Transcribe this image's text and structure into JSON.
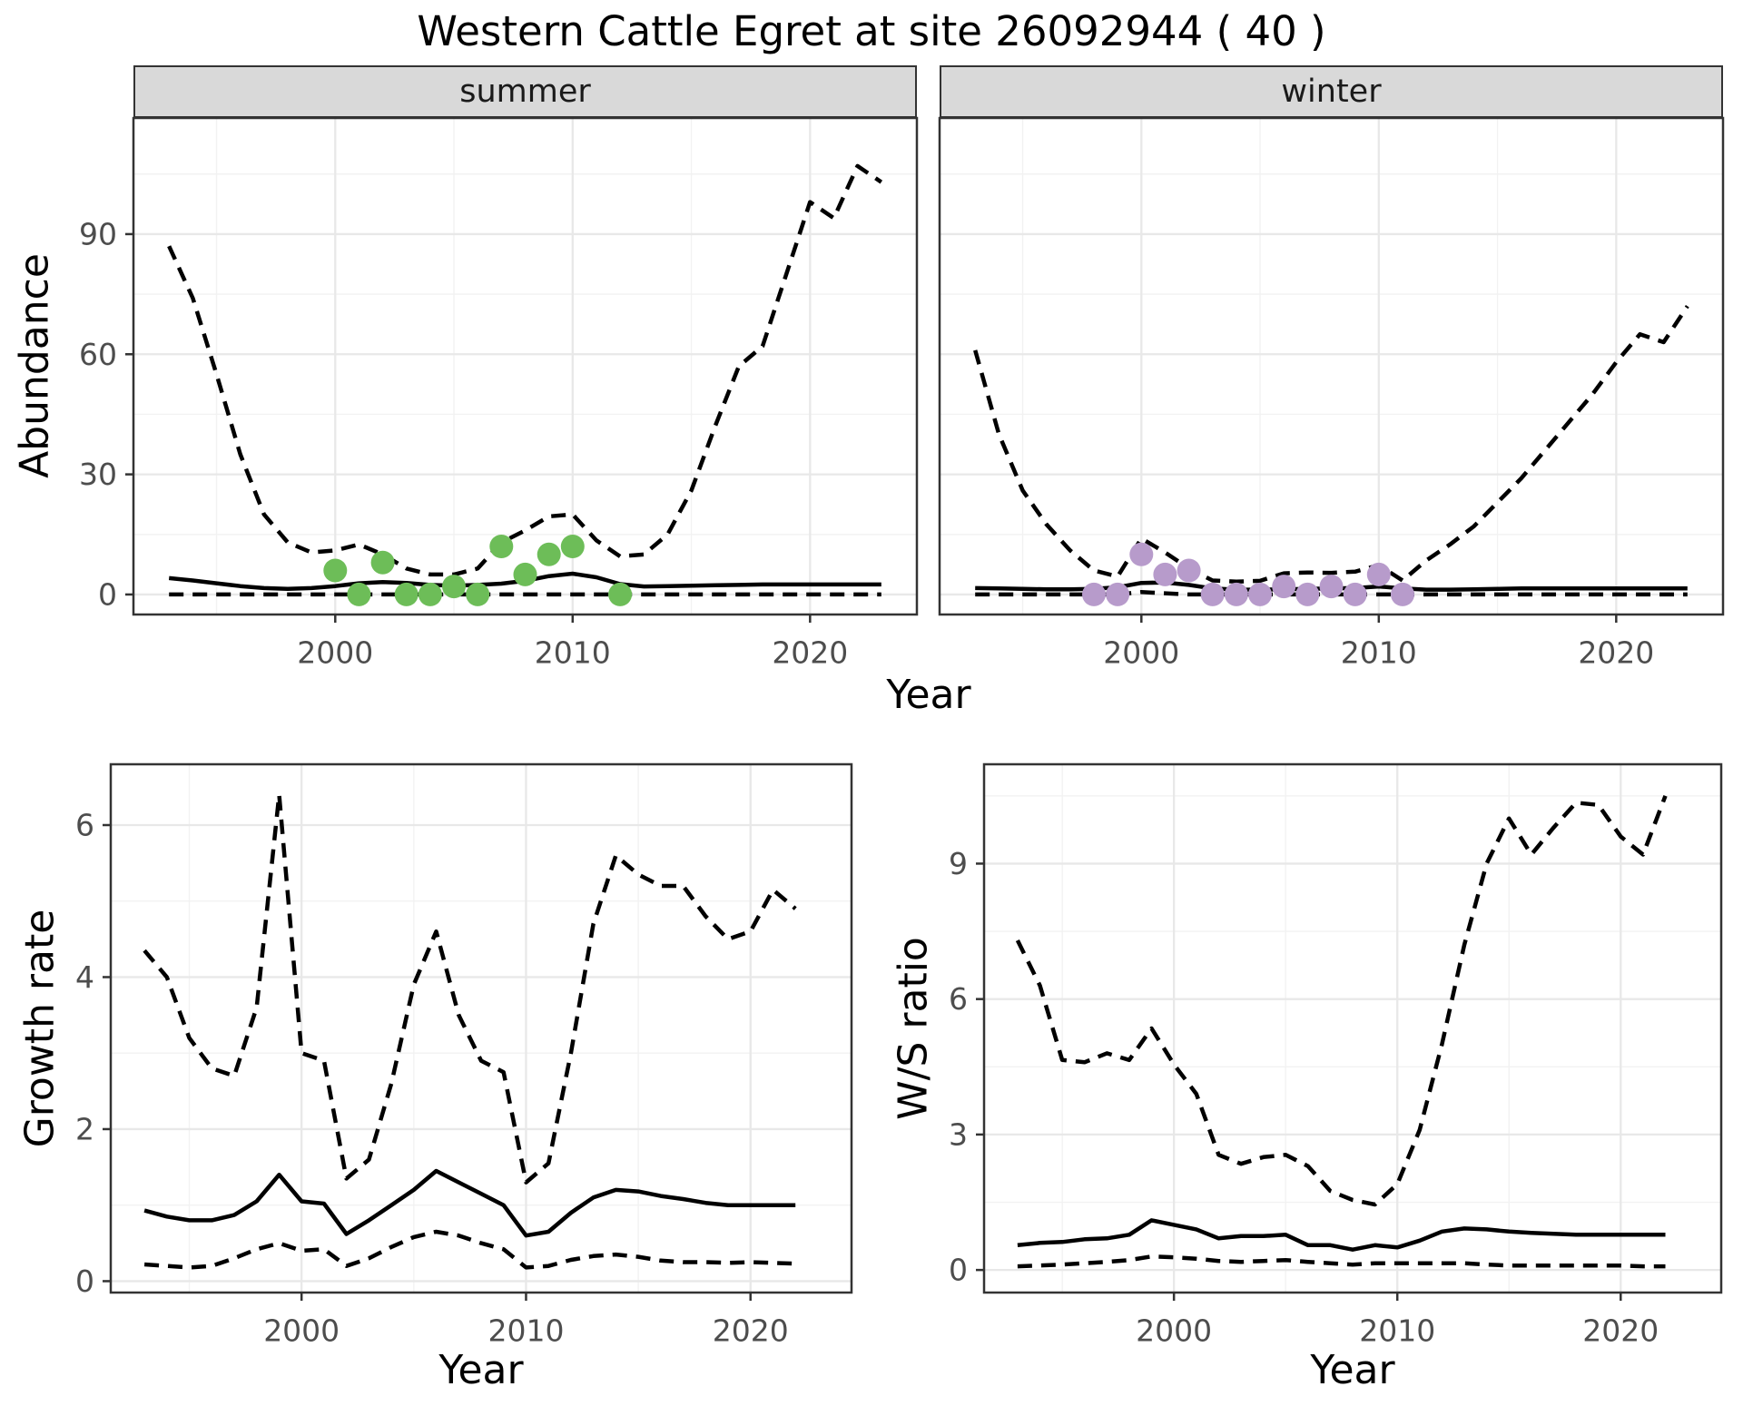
{
  "title": "Western Cattle Egret at site 26092944 ( 40 )",
  "colors": {
    "summer_points": "#6dbd58",
    "winter_points": "#b79bcb",
    "line": "#000000",
    "tick_label": "#4d4d4d",
    "axis_tick": "#333333",
    "panel_border": "#333333",
    "strip_bg": "#d9d9d9",
    "grid_major": "#e8e8e8",
    "grid_minor": "#f2f2f2"
  },
  "chart_data": [
    {
      "id": "abundance_summer",
      "type": "line+scatter",
      "facet_label": "summer",
      "ylabel": "Abundance",
      "xlabel": "Year",
      "legend_position": "none",
      "grid": true,
      "xlim": [
        1991.5,
        2024.5
      ],
      "ylim": [
        -5,
        119
      ],
      "x_ticks": [
        2000,
        2010,
        2020
      ],
      "y_ticks": [
        0,
        30,
        60,
        90
      ],
      "x_minor": [
        1995,
        2005,
        2015
      ],
      "y_minor": [
        15,
        45,
        75,
        105
      ],
      "series": [
        {
          "name": "upper_95ci",
          "style": "dashed",
          "x": [
            1993,
            1994,
            1995,
            1996,
            1997,
            1998,
            1999,
            2000,
            2001,
            2002,
            2003,
            2004,
            2005,
            2006,
            2007,
            2008,
            2009,
            2010,
            2011,
            2012,
            2013,
            2014,
            2015,
            2016,
            2017,
            2018,
            2019,
            2020,
            2021,
            2022,
            2023
          ],
          "y": [
            87,
            74,
            55,
            35,
            20,
            13,
            10.5,
            11,
            12.5,
            10,
            6.5,
            5,
            5,
            6.5,
            13,
            16,
            19.5,
            20,
            13.5,
            9.5,
            10,
            15,
            26,
            42,
            57,
            62,
            80,
            98,
            94,
            107,
            103
          ]
        },
        {
          "name": "lower_95ci",
          "style": "dashed",
          "x": [
            1993,
            1994,
            1995,
            1996,
            1997,
            1998,
            1999,
            2000,
            2001,
            2002,
            2003,
            2004,
            2005,
            2006,
            2007,
            2008,
            2009,
            2010,
            2011,
            2012,
            2013,
            2014,
            2015,
            2016,
            2017,
            2018,
            2019,
            2020,
            2021,
            2022,
            2023
          ],
          "y": [
            0,
            0,
            0,
            0,
            0,
            0,
            0,
            0,
            0,
            0,
            0,
            0,
            0,
            0,
            0,
            0,
            0,
            0,
            0,
            0,
            0,
            0,
            0,
            0,
            0,
            0,
            0,
            0,
            0,
            0,
            0
          ]
        },
        {
          "name": "model_fit",
          "style": "solid",
          "x": [
            1993,
            1994,
            1995,
            1996,
            1997,
            1998,
            1999,
            2000,
            2001,
            2002,
            2003,
            2004,
            2005,
            2006,
            2007,
            2008,
            2009,
            2010,
            2011,
            2012,
            2013,
            2014,
            2015,
            2016,
            2017,
            2018,
            2019,
            2020,
            2021,
            2022,
            2023
          ],
          "y": [
            4.1,
            3.5,
            2.8,
            2.1,
            1.6,
            1.4,
            1.6,
            2.1,
            2.8,
            3.1,
            2.9,
            2.4,
            2.2,
            2.4,
            2.7,
            3.4,
            4.6,
            5.2,
            4.3,
            2.6,
            2.0,
            2.1,
            2.2,
            2.3,
            2.4,
            2.5,
            2.5,
            2.5,
            2.5,
            2.5,
            2.5
          ]
        },
        {
          "name": "observed_counts",
          "style": "points",
          "color_key": "summer_points",
          "x": [
            2000,
            2001,
            2002,
            2003,
            2004,
            2005,
            2006,
            2007,
            2008,
            2009,
            2010,
            2012
          ],
          "y": [
            6,
            0,
            8,
            0,
            0,
            2,
            0,
            12,
            5,
            10,
            12,
            0
          ]
        }
      ]
    },
    {
      "id": "abundance_winter",
      "type": "line+scatter",
      "facet_label": "winter",
      "ylabel": "Abundance",
      "xlabel": "Year",
      "legend_position": "none",
      "grid": true,
      "xlim": [
        1991.5,
        2024.5
      ],
      "ylim": [
        -5,
        119
      ],
      "x_ticks": [
        2000,
        2010,
        2020
      ],
      "y_ticks": [
        0,
        30,
        60,
        90
      ],
      "x_minor": [
        1995,
        2005,
        2015
      ],
      "y_minor": [
        15,
        45,
        75,
        105
      ],
      "series": [
        {
          "name": "upper_95ci",
          "style": "dashed",
          "x": [
            1993,
            1994,
            1995,
            1996,
            1997,
            1998,
            1999,
            2000,
            2001,
            2002,
            2003,
            2004,
            2005,
            2006,
            2007,
            2008,
            2009,
            2010,
            2011,
            2012,
            2013,
            2014,
            2015,
            2016,
            2017,
            2018,
            2019,
            2020,
            2021,
            2022,
            2023
          ],
          "y": [
            61,
            40,
            26,
            17.5,
            11,
            6,
            4.5,
            14,
            10.5,
            6.5,
            3.5,
            3.2,
            3.4,
            5.3,
            5.5,
            5.4,
            5.7,
            7.3,
            3.5,
            8.5,
            12.5,
            17,
            23,
            29,
            36,
            43,
            50,
            58,
            65,
            63,
            72
          ]
        },
        {
          "name": "lower_95ci",
          "style": "dashed",
          "x": [
            1993,
            1994,
            1995,
            1996,
            1997,
            1998,
            1999,
            2000,
            2001,
            2002,
            2003,
            2004,
            2005,
            2006,
            2007,
            2008,
            2009,
            2010,
            2011,
            2012,
            2013,
            2014,
            2015,
            2016,
            2017,
            2018,
            2019,
            2020,
            2021,
            2022,
            2023
          ],
          "y": [
            0,
            0,
            0,
            0,
            0,
            0,
            0,
            0.6,
            0.3,
            0,
            0,
            0,
            0,
            0,
            0,
            0,
            0,
            0,
            0,
            0,
            0,
            0,
            0,
            0,
            0,
            0,
            0,
            0,
            0,
            0,
            0
          ]
        },
        {
          "name": "model_fit",
          "style": "solid",
          "x": [
            1993,
            1994,
            1995,
            1996,
            1997,
            1998,
            1999,
            2000,
            2001,
            2002,
            2003,
            2004,
            2005,
            2006,
            2007,
            2008,
            2009,
            2010,
            2011,
            2012,
            2013,
            2014,
            2015,
            2016,
            2017,
            2018,
            2019,
            2020,
            2021,
            2022,
            2023
          ],
          "y": [
            1.6,
            1.5,
            1.4,
            1.3,
            1.3,
            1.4,
            1.8,
            2.9,
            3.0,
            2.4,
            1.5,
            1.2,
            1.2,
            1.3,
            1.4,
            1.5,
            1.6,
            2.0,
            1.5,
            1.2,
            1.2,
            1.3,
            1.4,
            1.5,
            1.5,
            1.5,
            1.5,
            1.5,
            1.5,
            1.5,
            1.5
          ]
        },
        {
          "name": "observed_counts",
          "style": "points",
          "color_key": "winter_points",
          "x": [
            1998,
            1999,
            2000,
            2001,
            2002,
            2003,
            2004,
            2005,
            2006,
            2007,
            2008,
            2009,
            2010,
            2011
          ],
          "y": [
            0,
            0,
            10,
            5,
            6,
            0,
            0,
            0,
            2,
            0,
            2,
            0,
            5,
            0
          ]
        }
      ]
    },
    {
      "id": "growth_rate",
      "type": "line",
      "facet_label": "",
      "ylabel": "Growth rate",
      "xlabel": "Year",
      "legend_position": "none",
      "grid": true,
      "xlim": [
        1991.5,
        2024.5
      ],
      "ylim": [
        -0.15,
        6.8
      ],
      "x_ticks": [
        2000,
        2010,
        2020
      ],
      "y_ticks": [
        0,
        2,
        4,
        6
      ],
      "x_minor": [
        1995,
        2005,
        2015
      ],
      "y_minor": [
        1,
        3,
        5
      ],
      "series": [
        {
          "name": "upper_95ci",
          "style": "dashed",
          "x": [
            1993,
            1994,
            1995,
            1996,
            1997,
            1998,
            1999,
            2000,
            2001,
            2002,
            2003,
            2004,
            2005,
            2006,
            2007,
            2008,
            2009,
            2010,
            2011,
            2012,
            2013,
            2014,
            2015,
            2016,
            2017,
            2018,
            2019,
            2020,
            2021,
            2022
          ],
          "y": [
            4.35,
            4.0,
            3.2,
            2.8,
            2.7,
            3.6,
            6.4,
            3.0,
            2.9,
            1.35,
            1.6,
            2.6,
            3.9,
            4.6,
            3.5,
            2.9,
            2.75,
            1.3,
            1.55,
            3.0,
            4.7,
            5.6,
            5.35,
            5.2,
            5.2,
            4.8,
            4.5,
            4.6,
            5.15,
            4.9
          ]
        },
        {
          "name": "lower_95ci",
          "style": "dashed",
          "x": [
            1993,
            1994,
            1995,
            1996,
            1997,
            1998,
            1999,
            2000,
            2001,
            2002,
            2003,
            2004,
            2005,
            2006,
            2007,
            2008,
            2009,
            2010,
            2011,
            2012,
            2013,
            2014,
            2015,
            2016,
            2017,
            2018,
            2019,
            2020,
            2021,
            2022
          ],
          "y": [
            0.22,
            0.2,
            0.18,
            0.2,
            0.3,
            0.42,
            0.5,
            0.4,
            0.42,
            0.2,
            0.3,
            0.45,
            0.58,
            0.65,
            0.6,
            0.5,
            0.42,
            0.18,
            0.2,
            0.28,
            0.33,
            0.35,
            0.32,
            0.27,
            0.25,
            0.25,
            0.24,
            0.25,
            0.24,
            0.23
          ]
        },
        {
          "name": "model_fit",
          "style": "solid",
          "x": [
            1993,
            1994,
            1995,
            1996,
            1997,
            1998,
            1999,
            2000,
            2001,
            2002,
            2003,
            2004,
            2005,
            2006,
            2007,
            2008,
            2009,
            2010,
            2011,
            2012,
            2013,
            2014,
            2015,
            2016,
            2017,
            2018,
            2019,
            2020,
            2021,
            2022
          ],
          "y": [
            0.93,
            0.85,
            0.8,
            0.8,
            0.87,
            1.05,
            1.4,
            1.05,
            1.02,
            0.62,
            0.8,
            1.0,
            1.2,
            1.45,
            1.3,
            1.15,
            1.0,
            0.6,
            0.65,
            0.9,
            1.1,
            1.2,
            1.18,
            1.12,
            1.08,
            1.03,
            1.0,
            1.0,
            1.0,
            1.0
          ]
        }
      ]
    },
    {
      "id": "ws_ratio",
      "type": "line",
      "facet_label": "",
      "ylabel": "W/S ratio",
      "xlabel": "Year",
      "legend_position": "none",
      "grid": true,
      "xlim": [
        1991.5,
        2024.5
      ],
      "ylim": [
        -0.5,
        11.2
      ],
      "x_ticks": [
        2000,
        2010,
        2020
      ],
      "y_ticks": [
        0,
        3,
        6,
        9
      ],
      "x_minor": [
        1995,
        2005,
        2015
      ],
      "y_minor": [
        1.5,
        4.5,
        7.5,
        10.5
      ],
      "series": [
        {
          "name": "upper_95ci",
          "style": "dashed",
          "x": [
            1993,
            1994,
            1995,
            1996,
            1997,
            1998,
            1999,
            2000,
            2001,
            2002,
            2003,
            2004,
            2005,
            2006,
            2007,
            2008,
            2009,
            2010,
            2011,
            2012,
            2013,
            2014,
            2015,
            2016,
            2017,
            2018,
            2019,
            2020,
            2021,
            2022
          ],
          "y": [
            7.3,
            6.3,
            4.65,
            4.6,
            4.8,
            4.65,
            5.35,
            4.55,
            3.9,
            2.55,
            2.35,
            2.5,
            2.55,
            2.3,
            1.75,
            1.55,
            1.45,
            1.9,
            3.1,
            5.0,
            7.2,
            9.0,
            10.0,
            9.2,
            9.8,
            10.35,
            10.3,
            9.6,
            9.2,
            10.5
          ]
        },
        {
          "name": "lower_95ci",
          "style": "dashed",
          "x": [
            1993,
            1994,
            1995,
            1996,
            1997,
            1998,
            1999,
            2000,
            2001,
            2002,
            2003,
            2004,
            2005,
            2006,
            2007,
            2008,
            2009,
            2010,
            2011,
            2012,
            2013,
            2014,
            2015,
            2016,
            2017,
            2018,
            2019,
            2020,
            2021,
            2022
          ],
          "y": [
            0.08,
            0.1,
            0.12,
            0.15,
            0.18,
            0.22,
            0.3,
            0.28,
            0.25,
            0.2,
            0.18,
            0.2,
            0.22,
            0.18,
            0.15,
            0.12,
            0.15,
            0.15,
            0.15,
            0.15,
            0.15,
            0.12,
            0.1,
            0.1,
            0.1,
            0.1,
            0.1,
            0.1,
            0.08,
            0.08
          ]
        },
        {
          "name": "model_fit",
          "style": "solid",
          "x": [
            1993,
            1994,
            1995,
            1996,
            1997,
            1998,
            1999,
            2000,
            2001,
            2002,
            2003,
            2004,
            2005,
            2006,
            2007,
            2008,
            2009,
            2010,
            2011,
            2012,
            2013,
            2014,
            2015,
            2016,
            2017,
            2018,
            2019,
            2020,
            2021,
            2022
          ],
          "y": [
            0.55,
            0.6,
            0.62,
            0.68,
            0.7,
            0.78,
            1.1,
            1.0,
            0.9,
            0.7,
            0.75,
            0.75,
            0.78,
            0.55,
            0.55,
            0.45,
            0.55,
            0.5,
            0.65,
            0.85,
            0.92,
            0.9,
            0.85,
            0.82,
            0.8,
            0.78,
            0.78,
            0.78,
            0.78,
            0.78
          ]
        }
      ]
    }
  ]
}
